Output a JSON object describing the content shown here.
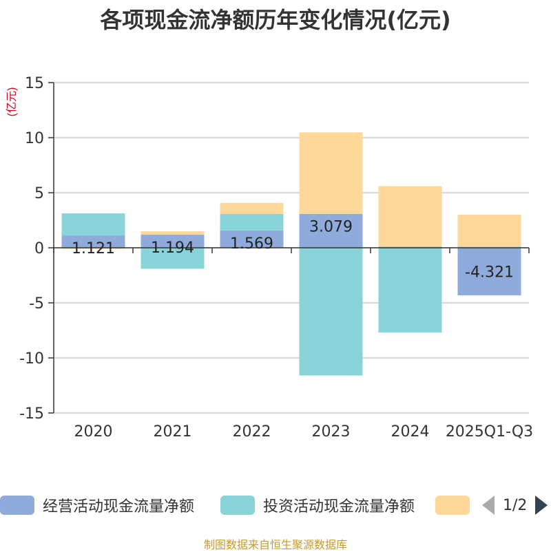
{
  "chart_data": {
    "type": "bar",
    "stacked": true,
    "title": "各项现金流净额历年变化情况(亿元)",
    "ylabel": "(亿元)",
    "ylim": [
      -15,
      15
    ],
    "yticks": [
      15,
      10,
      5,
      0,
      -5,
      -10,
      -15
    ],
    "categories": [
      "2020",
      "2021",
      "2022",
      "2023",
      "2024",
      "2025Q1-Q3"
    ],
    "series": [
      {
        "name": "经营活动现金流量净额",
        "color": "#8eabdb",
        "values": [
          1.121,
          1.194,
          1.569,
          3.079,
          0.1,
          -4.321
        ],
        "labels": [
          "1.121",
          "1.194",
          "1.569",
          "3.079",
          "",
          "-4.321"
        ]
      },
      {
        "name": "投资活动现金流量净额",
        "color": "#88d4d8",
        "values": [
          2.0,
          -1.9,
          1.5,
          -11.6,
          -7.7,
          0.1
        ]
      },
      {
        "name": "",
        "color": "#fdd899",
        "values": [
          -0.1,
          0.3,
          1.0,
          7.4,
          5.5,
          2.9
        ]
      }
    ],
    "legend_position": "bottom",
    "grid": true
  },
  "legend": {
    "page": "1/2"
  },
  "source": "制图数据来自恒生聚源数据库"
}
